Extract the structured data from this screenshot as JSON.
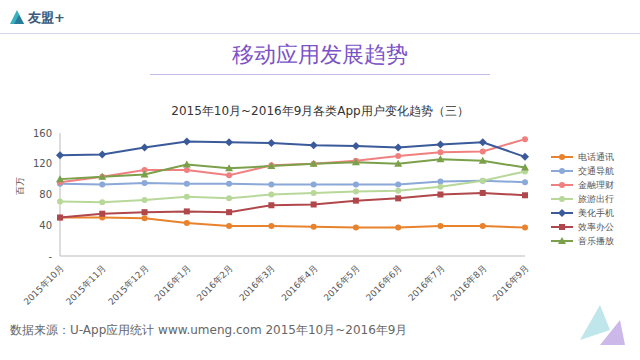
{
  "header": {
    "brand": "友盟+",
    "title": "移动应用发展趋势"
  },
  "chart_data": {
    "type": "line",
    "title": "2015年10月~2016年9月各类App用户变化趋势（三）",
    "ylabel": "百万",
    "categories": [
      "2015年10月",
      "2015年11月",
      "2015年12月",
      "2016年1月",
      "2016年2月",
      "2016年3月",
      "2016年4月",
      "2016年5月",
      "2016年6月",
      "2016年7月",
      "2016年8月",
      "2016年9月"
    ],
    "series": [
      {
        "name": "电话通讯",
        "color": "#e8822c",
        "marker": "circle",
        "values": [
          50,
          50,
          49,
          43,
          39,
          39,
          38,
          37,
          37,
          39,
          39,
          37
        ]
      },
      {
        "name": "交通导航",
        "color": "#8aa8d8",
        "marker": "circle",
        "values": [
          94,
          93,
          95,
          94,
          94,
          93,
          93,
          93,
          93,
          97,
          98,
          96
        ]
      },
      {
        "name": "金融理财",
        "color": "#f08080",
        "marker": "circle",
        "values": [
          96,
          103,
          112,
          112,
          105,
          118,
          120,
          124,
          130,
          135,
          136,
          152
        ]
      },
      {
        "name": "旅游出行",
        "color": "#b8d89a",
        "marker": "circle",
        "values": [
          71,
          70,
          73,
          77,
          75,
          80,
          82,
          84,
          85,
          90,
          98,
          110
        ]
      },
      {
        "name": "美化手机",
        "color": "#3a5a9a",
        "marker": "diamond",
        "values": [
          131,
          132,
          141,
          149,
          148,
          147,
          144,
          143,
          141,
          145,
          148,
          129
        ]
      },
      {
        "name": "效率办公",
        "color": "#b0474a",
        "marker": "square",
        "values": [
          50,
          55,
          57,
          58,
          57,
          66,
          67,
          72,
          75,
          80,
          82,
          79
        ]
      },
      {
        "name": "音乐播放",
        "color": "#7aa04a",
        "marker": "triangle",
        "values": [
          100,
          103,
          106,
          119,
          114,
          117,
          120,
          122,
          120,
          126,
          124,
          115
        ]
      }
    ],
    "ylim": [
      0,
      160
    ],
    "yticks": [
      {
        "value": 0,
        "label": "-"
      },
      40,
      80,
      120,
      160
    ],
    "grid": false,
    "legend": "right"
  },
  "footer": "数据来源：U-App应用统计 www.umeng.com 2015年10月~2016年9月"
}
